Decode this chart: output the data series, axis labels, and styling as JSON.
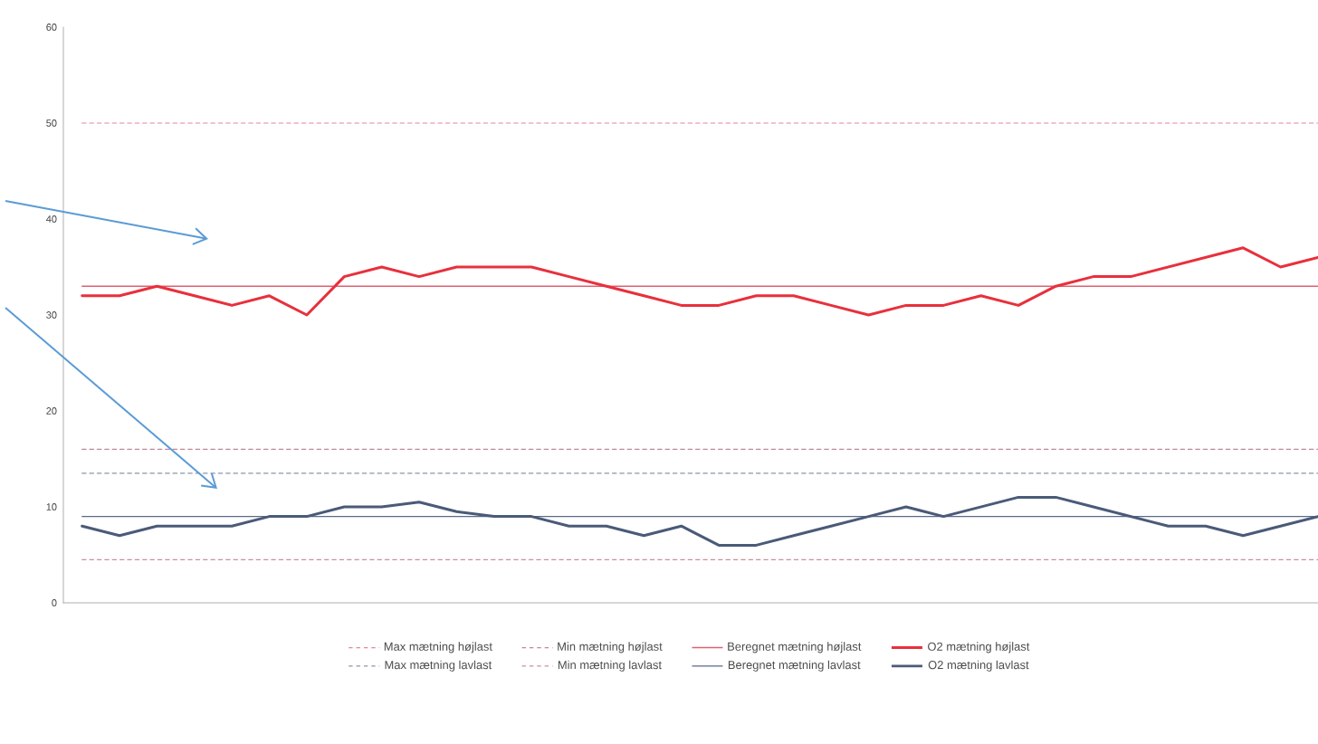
{
  "chart_data": {
    "type": "line",
    "categories": [
      null,
      null,
      null,
      null,
      null,
      null,
      null,
      null,
      null,
      null,
      null,
      null,
      null,
      null,
      null,
      null,
      null,
      null,
      null,
      null,
      null,
      null,
      null,
      null,
      null,
      null,
      null,
      null,
      null,
      null,
      null,
      null,
      null,
      null
    ],
    "series": [
      {
        "name": "Max mætning højlast",
        "color": "#e08898",
        "line_style": "dashed",
        "values": [
          50,
          50,
          50,
          50,
          50,
          50,
          50,
          50,
          50,
          50,
          50,
          50,
          50,
          50,
          50,
          50,
          50,
          50,
          50,
          50,
          50,
          50,
          50,
          50,
          50,
          50,
          50,
          50,
          50,
          50,
          50,
          50,
          50,
          50
        ]
      },
      {
        "name": "Min mætning højlast",
        "color": "#c08898",
        "line_style": "dashed",
        "values": [
          16,
          16,
          16,
          16,
          16,
          16,
          16,
          16,
          16,
          16,
          16,
          16,
          16,
          16,
          16,
          16,
          16,
          16,
          16,
          16,
          16,
          16,
          16,
          16,
          16,
          16,
          16,
          16,
          16,
          16,
          16,
          16,
          16,
          16
        ]
      },
      {
        "name": "Beregnet mætning højlast",
        "color": "#e06070",
        "line_style": "solid",
        "values": [
          33,
          33,
          33,
          33,
          33,
          33,
          33,
          33,
          33,
          33,
          33,
          33,
          33,
          33,
          33,
          33,
          33,
          33,
          33,
          33,
          33,
          33,
          33,
          33,
          33,
          33,
          33,
          33,
          33,
          33,
          33,
          33,
          33,
          33
        ]
      },
      {
        "name": "O2 mætning højlast",
        "color": "#e8303c",
        "line_style": "solid",
        "values": [
          32,
          32,
          33,
          32,
          31,
          32,
          30,
          34,
          35,
          34,
          35,
          35,
          35,
          34,
          33,
          32,
          31,
          31,
          32,
          32,
          31,
          30,
          31,
          31,
          32,
          31,
          33,
          34,
          34,
          35,
          36,
          37,
          35,
          36
        ]
      },
      {
        "name": "Max mætning lavlast",
        "color": "#8898b0",
        "line_style": "dashed",
        "values": [
          13.5,
          13.5,
          13.5,
          13.5,
          13.5,
          13.5,
          13.5,
          13.5,
          13.5,
          13.5,
          13.5,
          13.5,
          13.5,
          13.5,
          13.5,
          13.5,
          13.5,
          13.5,
          13.5,
          13.5,
          13.5,
          13.5,
          13.5,
          13.5,
          13.5,
          13.5,
          13.5,
          13.5,
          13.5,
          13.5,
          13.5,
          13.5,
          13.5,
          13.5
        ]
      },
      {
        "name": "Min mætning lavlast",
        "color": "#c890a0",
        "line_style": "dashed",
        "values": [
          4.5,
          4.5,
          4.5,
          4.5,
          4.5,
          4.5,
          4.5,
          4.5,
          4.5,
          4.5,
          4.5,
          4.5,
          4.5,
          4.5,
          4.5,
          4.5,
          4.5,
          4.5,
          4.5,
          4.5,
          4.5,
          4.5,
          4.5,
          4.5,
          4.5,
          4.5,
          4.5,
          4.5,
          4.5,
          4.5,
          4.5,
          4.5,
          4.5,
          4.5
        ]
      },
      {
        "name": "Beregnet mætning lavlast",
        "color": "#5a6a88",
        "line_style": "solid",
        "values": [
          9,
          9,
          9,
          9,
          9,
          9,
          9,
          9,
          9,
          9,
          9,
          9,
          9,
          9,
          9,
          9,
          9,
          9,
          9,
          9,
          9,
          9,
          9,
          9,
          9,
          9,
          9,
          9,
          9,
          9,
          9,
          9,
          9,
          9
        ]
      },
      {
        "name": "O2 mætning lavlast",
        "color": "#4a5a78",
        "line_style": "solid",
        "values": [
          8,
          7,
          8,
          8,
          8,
          9,
          9,
          10,
          10,
          10.5,
          9.5,
          9,
          9,
          8,
          8,
          7,
          8,
          6,
          6,
          7,
          8,
          9,
          10,
          9,
          10,
          11,
          11,
          10,
          9,
          8,
          8,
          7,
          8,
          9
        ]
      }
    ],
    "ylim": [
      0,
      60
    ],
    "yticks": [
      0,
      10,
      20,
      30,
      40,
      50,
      60
    ],
    "grid": false,
    "legend": "bottom",
    "marker": "none"
  }
}
